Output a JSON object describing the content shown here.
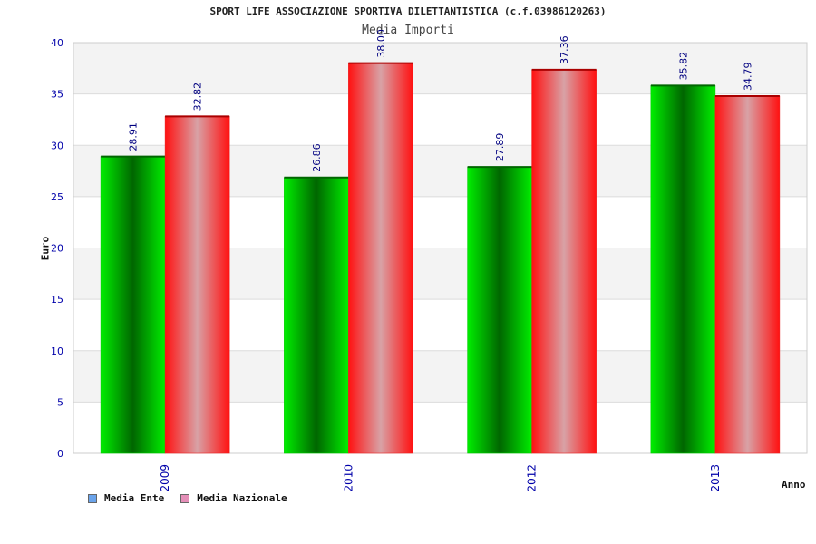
{
  "colors": {
    "ente_dark": "#006600",
    "ente_bright": "#00ee00",
    "naz_dark": "#ff1111",
    "naz_light": "#d8a2a6",
    "axis_text": "#0000aa",
    "value_text": "#000080",
    "legend_ente": "#6aa3ea",
    "legend_naz": "#e58fb8"
  },
  "chart_data": {
    "type": "bar",
    "title": "SPORT LIFE ASSOCIAZIONE SPORTIVA DILETTANTISTICA (c.f.03986120263)",
    "subtitle": "Media Importi",
    "xlabel": "Anno",
    "ylabel": "Euro",
    "categories": [
      "2009",
      "2010",
      "2012",
      "2013"
    ],
    "ylim": [
      0,
      40
    ],
    "yticks": [
      0,
      5,
      10,
      15,
      20,
      25,
      30,
      35,
      40
    ],
    "grid": true,
    "legend_position": "bottom-left",
    "series": [
      {
        "name": "Media Ente",
        "values": [
          28.91,
          26.86,
          27.89,
          35.82
        ],
        "labels": [
          "28.91",
          "26.86",
          "27.89",
          "35.82"
        ]
      },
      {
        "name": "Media Nazionale",
        "values": [
          32.82,
          38.0,
          37.36,
          34.79
        ],
        "labels": [
          "32.82",
          "38.00",
          "37.36",
          "34.79"
        ]
      }
    ]
  }
}
